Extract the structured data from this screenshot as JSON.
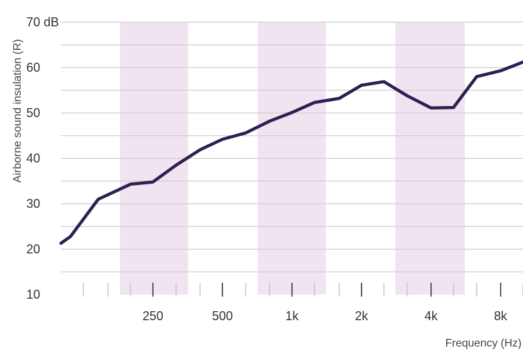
{
  "chart_data": {
    "type": "line",
    "title": "",
    "ylabel": "Airborne sound insulation (R)",
    "xlabel": "Frequency (Hz)",
    "y_unit": "dB",
    "ylim": [
      10,
      70
    ],
    "y_ticks": [
      10,
      20,
      30,
      40,
      50,
      60,
      70
    ],
    "y_tick_labels": [
      "10",
      "20",
      "30",
      "40",
      "50",
      "60",
      "70 dB"
    ],
    "x_scale": "log (1/3-octave bands)",
    "x_tick_labels": [
      "250",
      "500",
      "1k",
      "2k",
      "4k",
      "8k"
    ],
    "x_ticks_hz": [
      250,
      500,
      1000,
      2000,
      4000,
      8000
    ],
    "x_minor_ticks_hz": [
      125,
      160,
      200,
      315,
      400,
      630,
      800,
      1250,
      1600,
      2500,
      3150,
      5000,
      6300,
      10000
    ],
    "shaded_bands_hz": [
      [
        180,
        355
      ],
      [
        710,
        1400
      ],
      [
        2800,
        5600
      ]
    ],
    "grid": "horizontal",
    "line_color": "#2e1f52",
    "band_color": "#f0e4f0",
    "series": [
      {
        "x": [
          100,
          110,
          145,
          200,
          250,
          315,
          400,
          500,
          630,
          800,
          1000,
          1250,
          1600,
          2000,
          2500,
          3150,
          4000,
          5000,
          6300,
          8000,
          10000
        ],
        "values": [
          21.3,
          22.8,
          31.0,
          34.3,
          34.8,
          38.5,
          41.9,
          44.2,
          45.6,
          48.2,
          50.1,
          52.3,
          53.2,
          56.1,
          56.9,
          53.8,
          51.1,
          51.2,
          58.0,
          59.3,
          61.2
        ]
      }
    ]
  }
}
